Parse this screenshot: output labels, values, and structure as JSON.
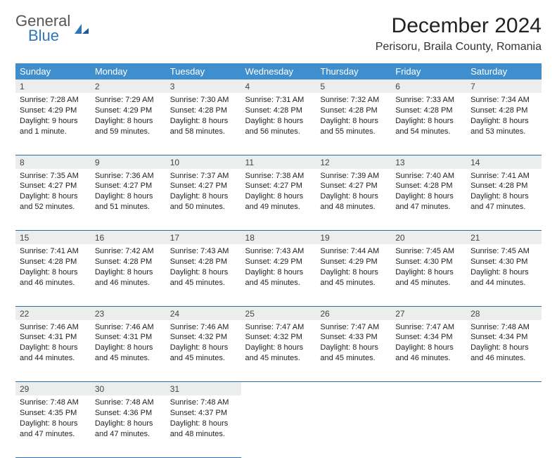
{
  "header": {
    "logo_general": "General",
    "logo_blue": "Blue",
    "month_title": "December 2024",
    "location": "Perisoru, Braila County, Romania"
  },
  "colors": {
    "header_bg": "#3f8fcf",
    "header_text": "#ffffff",
    "daynum_bg": "#eceeee",
    "border": "#2e6da4",
    "logo_accent": "#2f76b9"
  },
  "day_headers": [
    "Sunday",
    "Monday",
    "Tuesday",
    "Wednesday",
    "Thursday",
    "Friday",
    "Saturday"
  ],
  "weeks": [
    [
      {
        "num": "1",
        "sunrise": "Sunrise: 7:28 AM",
        "sunset": "Sunset: 4:29 PM",
        "daylight": "Daylight: 9 hours and 1 minute."
      },
      {
        "num": "2",
        "sunrise": "Sunrise: 7:29 AM",
        "sunset": "Sunset: 4:29 PM",
        "daylight": "Daylight: 8 hours and 59 minutes."
      },
      {
        "num": "3",
        "sunrise": "Sunrise: 7:30 AM",
        "sunset": "Sunset: 4:28 PM",
        "daylight": "Daylight: 8 hours and 58 minutes."
      },
      {
        "num": "4",
        "sunrise": "Sunrise: 7:31 AM",
        "sunset": "Sunset: 4:28 PM",
        "daylight": "Daylight: 8 hours and 56 minutes."
      },
      {
        "num": "5",
        "sunrise": "Sunrise: 7:32 AM",
        "sunset": "Sunset: 4:28 PM",
        "daylight": "Daylight: 8 hours and 55 minutes."
      },
      {
        "num": "6",
        "sunrise": "Sunrise: 7:33 AM",
        "sunset": "Sunset: 4:28 PM",
        "daylight": "Daylight: 8 hours and 54 minutes."
      },
      {
        "num": "7",
        "sunrise": "Sunrise: 7:34 AM",
        "sunset": "Sunset: 4:28 PM",
        "daylight": "Daylight: 8 hours and 53 minutes."
      }
    ],
    [
      {
        "num": "8",
        "sunrise": "Sunrise: 7:35 AM",
        "sunset": "Sunset: 4:27 PM",
        "daylight": "Daylight: 8 hours and 52 minutes."
      },
      {
        "num": "9",
        "sunrise": "Sunrise: 7:36 AM",
        "sunset": "Sunset: 4:27 PM",
        "daylight": "Daylight: 8 hours and 51 minutes."
      },
      {
        "num": "10",
        "sunrise": "Sunrise: 7:37 AM",
        "sunset": "Sunset: 4:27 PM",
        "daylight": "Daylight: 8 hours and 50 minutes."
      },
      {
        "num": "11",
        "sunrise": "Sunrise: 7:38 AM",
        "sunset": "Sunset: 4:27 PM",
        "daylight": "Daylight: 8 hours and 49 minutes."
      },
      {
        "num": "12",
        "sunrise": "Sunrise: 7:39 AM",
        "sunset": "Sunset: 4:27 PM",
        "daylight": "Daylight: 8 hours and 48 minutes."
      },
      {
        "num": "13",
        "sunrise": "Sunrise: 7:40 AM",
        "sunset": "Sunset: 4:28 PM",
        "daylight": "Daylight: 8 hours and 47 minutes."
      },
      {
        "num": "14",
        "sunrise": "Sunrise: 7:41 AM",
        "sunset": "Sunset: 4:28 PM",
        "daylight": "Daylight: 8 hours and 47 minutes."
      }
    ],
    [
      {
        "num": "15",
        "sunrise": "Sunrise: 7:41 AM",
        "sunset": "Sunset: 4:28 PM",
        "daylight": "Daylight: 8 hours and 46 minutes."
      },
      {
        "num": "16",
        "sunrise": "Sunrise: 7:42 AM",
        "sunset": "Sunset: 4:28 PM",
        "daylight": "Daylight: 8 hours and 46 minutes."
      },
      {
        "num": "17",
        "sunrise": "Sunrise: 7:43 AM",
        "sunset": "Sunset: 4:28 PM",
        "daylight": "Daylight: 8 hours and 45 minutes."
      },
      {
        "num": "18",
        "sunrise": "Sunrise: 7:43 AM",
        "sunset": "Sunset: 4:29 PM",
        "daylight": "Daylight: 8 hours and 45 minutes."
      },
      {
        "num": "19",
        "sunrise": "Sunrise: 7:44 AM",
        "sunset": "Sunset: 4:29 PM",
        "daylight": "Daylight: 8 hours and 45 minutes."
      },
      {
        "num": "20",
        "sunrise": "Sunrise: 7:45 AM",
        "sunset": "Sunset: 4:30 PM",
        "daylight": "Daylight: 8 hours and 45 minutes."
      },
      {
        "num": "21",
        "sunrise": "Sunrise: 7:45 AM",
        "sunset": "Sunset: 4:30 PM",
        "daylight": "Daylight: 8 hours and 44 minutes."
      }
    ],
    [
      {
        "num": "22",
        "sunrise": "Sunrise: 7:46 AM",
        "sunset": "Sunset: 4:31 PM",
        "daylight": "Daylight: 8 hours and 44 minutes."
      },
      {
        "num": "23",
        "sunrise": "Sunrise: 7:46 AM",
        "sunset": "Sunset: 4:31 PM",
        "daylight": "Daylight: 8 hours and 45 minutes."
      },
      {
        "num": "24",
        "sunrise": "Sunrise: 7:46 AM",
        "sunset": "Sunset: 4:32 PM",
        "daylight": "Daylight: 8 hours and 45 minutes."
      },
      {
        "num": "25",
        "sunrise": "Sunrise: 7:47 AM",
        "sunset": "Sunset: 4:32 PM",
        "daylight": "Daylight: 8 hours and 45 minutes."
      },
      {
        "num": "26",
        "sunrise": "Sunrise: 7:47 AM",
        "sunset": "Sunset: 4:33 PM",
        "daylight": "Daylight: 8 hours and 45 minutes."
      },
      {
        "num": "27",
        "sunrise": "Sunrise: 7:47 AM",
        "sunset": "Sunset: 4:34 PM",
        "daylight": "Daylight: 8 hours and 46 minutes."
      },
      {
        "num": "28",
        "sunrise": "Sunrise: 7:48 AM",
        "sunset": "Sunset: 4:34 PM",
        "daylight": "Daylight: 8 hours and 46 minutes."
      }
    ],
    [
      {
        "num": "29",
        "sunrise": "Sunrise: 7:48 AM",
        "sunset": "Sunset: 4:35 PM",
        "daylight": "Daylight: 8 hours and 47 minutes."
      },
      {
        "num": "30",
        "sunrise": "Sunrise: 7:48 AM",
        "sunset": "Sunset: 4:36 PM",
        "daylight": "Daylight: 8 hours and 47 minutes."
      },
      {
        "num": "31",
        "sunrise": "Sunrise: 7:48 AM",
        "sunset": "Sunset: 4:37 PM",
        "daylight": "Daylight: 8 hours and 48 minutes."
      },
      null,
      null,
      null,
      null
    ]
  ]
}
